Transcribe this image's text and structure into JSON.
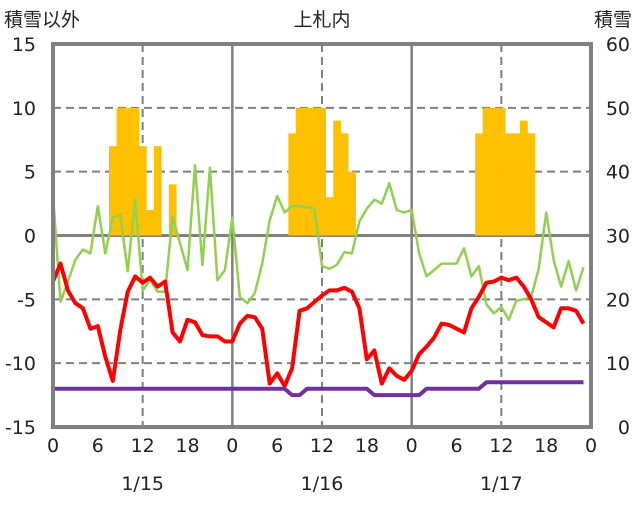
{
  "chart_data": {
    "type": "line",
    "title": "上札内",
    "ylabel_left": "積雪以外",
    "ylabel_right": "積雪",
    "ylim_left": [
      -15,
      15
    ],
    "yticks_left": [
      15,
      10,
      5,
      0,
      -5,
      -10,
      -15
    ],
    "ylim_right": [
      0,
      60
    ],
    "yticks_right": [
      60,
      50,
      40,
      30,
      20,
      10,
      0
    ],
    "x_hours": 72,
    "xtick_labels": [
      "0",
      "6",
      "12",
      "18",
      "0",
      "6",
      "12",
      "18",
      "0",
      "6",
      "12",
      "18",
      "0"
    ],
    "date_labels": [
      "1/15",
      "1/16",
      "1/17"
    ],
    "grid": true,
    "series": [
      {
        "name": "積雪",
        "type": "bar",
        "axis": "right",
        "color": "#FFC000",
        "baseline": 30,
        "values_by_hour": {
          "8": 44,
          "9": 50,
          "10": 50,
          "11": 50,
          "12": 44,
          "13": 34,
          "14": 44,
          "16": 38,
          "32": 46,
          "33": 50,
          "34": 50,
          "35": 50,
          "36": 50,
          "37": 36,
          "38": 48,
          "39": 46,
          "40": 40,
          "57": 46,
          "58": 50,
          "59": 50,
          "60": 50,
          "61": 46,
          "62": 46,
          "63": 48,
          "64": 46
        }
      },
      {
        "name": "series-green",
        "type": "line",
        "axis": "left",
        "color": "#92D050",
        "values": [
          3.2,
          -5.2,
          -3.6,
          -1.9,
          -1.1,
          -1.4,
          2.3,
          -1.4,
          1.4,
          1.6,
          -2.8,
          2.8,
          -4.3,
          -3.5,
          -4.4,
          -4.4,
          1.5,
          -0.6,
          -2.7,
          5.5,
          -2.3,
          5.3,
          -3.5,
          -2.7,
          1.4,
          -4.8,
          -5.3,
          -4.5,
          -2.2,
          1.2,
          3.1,
          1.8,
          2.3,
          2.3,
          2.2,
          2.1,
          -2.4,
          -2.6,
          -2.3,
          -1.3,
          -1.4,
          1.1,
          2.1,
          2.8,
          2.5,
          4.1,
          2.0,
          1.8,
          2.0,
          -1.4,
          -3.2,
          -2.7,
          -2.2,
          -2.2,
          -2.2,
          -1.0,
          -3.2,
          -2.4,
          -5.4,
          -6.1,
          -5.6,
          -6.6,
          -5.1,
          -5.0,
          -4.8,
          -2.6,
          1.8,
          -1.9,
          -4.0,
          -2.0,
          -4.3,
          -2.5
        ]
      },
      {
        "name": "series-red",
        "type": "line",
        "axis": "left",
        "color": "#FF0000",
        "values": [
          -3.6,
          -2.2,
          -4.3,
          -5.3,
          -5.7,
          -7.3,
          -7.1,
          -9.5,
          -11.4,
          -7.4,
          -4.4,
          -3.2,
          -3.7,
          -3.3,
          -4.0,
          -3.6,
          -7.6,
          -8.3,
          -6.6,
          -6.8,
          -7.8,
          -7.9,
          -7.9,
          -8.3,
          -8.3,
          -6.9,
          -6.3,
          -6.4,
          -7.3,
          -11.6,
          -10.8,
          -11.8,
          -10.4,
          -5.9,
          -5.7,
          -5.2,
          -4.7,
          -4.3,
          -4.3,
          -4.1,
          -4.4,
          -5.7,
          -9.7,
          -9.0,
          -11.6,
          -10.4,
          -11.0,
          -11.3,
          -10.6,
          -9.3,
          -8.7,
          -8.0,
          -6.9,
          -7.0,
          -7.3,
          -7.6,
          -5.7,
          -4.8,
          -3.7,
          -3.6,
          -3.3,
          -3.5,
          -3.3,
          -4.0,
          -5.0,
          -6.4,
          -6.8,
          -7.2,
          -5.7,
          -5.7,
          -5.9,
          -6.9
        ]
      },
      {
        "name": "series-purple",
        "type": "line",
        "axis": "left",
        "color": "#7030A0",
        "values": [
          -12,
          -12,
          -12,
          -12,
          -12,
          -12,
          -12,
          -12,
          -12,
          -12,
          -12,
          -12,
          -12,
          -12,
          -12,
          -12,
          -12,
          -12,
          -12,
          -12,
          -12,
          -12,
          -12,
          -12,
          -12,
          -12,
          -12,
          -12,
          -12,
          -12,
          -12,
          -12,
          -12.5,
          -12.5,
          -12,
          -12,
          -12,
          -12,
          -12,
          -12,
          -12,
          -12,
          -12,
          -12.5,
          -12.5,
          -12.5,
          -12.5,
          -12.5,
          -12.5,
          -12.5,
          -12,
          -12,
          -12,
          -12,
          -12,
          -12,
          -12,
          -12,
          -11.5,
          -11.5,
          -11.5,
          -11.5,
          -11.5,
          -11.5,
          -11.5,
          -11.5,
          -11.5,
          -11.5,
          -11.5,
          -11.5,
          -11.5,
          -11.5
        ]
      }
    ]
  }
}
